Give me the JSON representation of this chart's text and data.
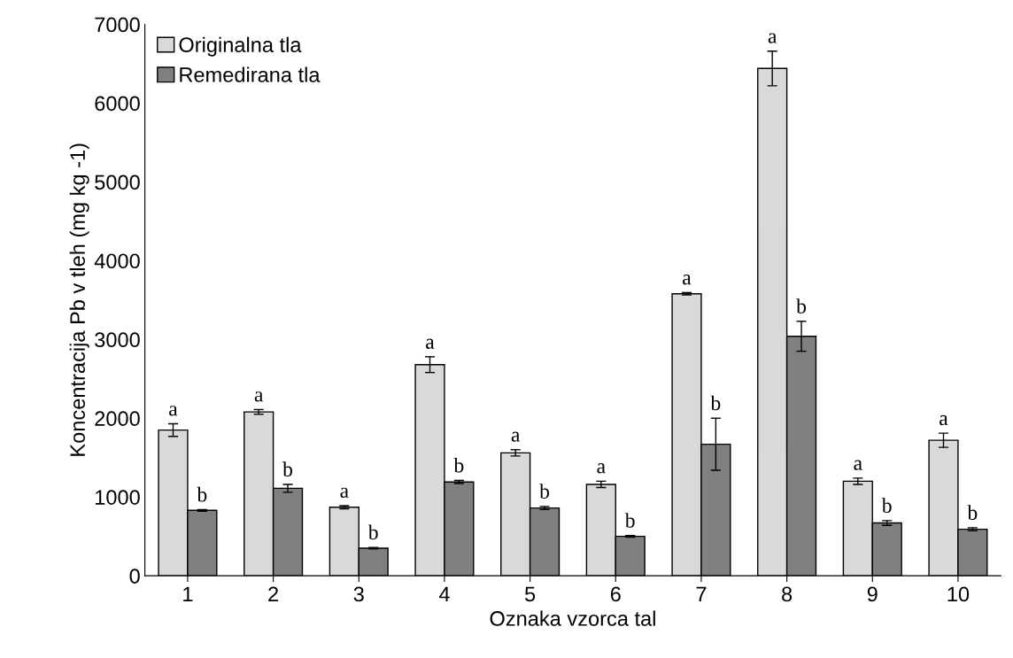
{
  "chart_data": {
    "type": "bar",
    "xlabel": "Oznaka vzorca tal",
    "ylabel": "Koncentracija Pb v tleh (mg kg -1)",
    "categories": [
      "1",
      "2",
      "3",
      "4",
      "5",
      "6",
      "7",
      "8",
      "9",
      "10"
    ],
    "series": [
      {
        "name": "Originalna tla",
        "color": "#d9d9d9",
        "values": [
          1850,
          2080,
          870,
          2680,
          1560,
          1160,
          3580,
          6440,
          1200,
          1720
        ],
        "errors": [
          80,
          30,
          20,
          100,
          40,
          40,
          15,
          220,
          40,
          90
        ]
      },
      {
        "name": "Remedirana tla",
        "color": "#808080",
        "values": [
          830,
          1110,
          350,
          1190,
          860,
          500,
          1670,
          3040,
          670,
          590
        ],
        "errors": [
          10,
          50,
          10,
          20,
          20,
          10,
          330,
          190,
          30,
          20
        ]
      }
    ],
    "ylim": [
      0,
      7000
    ],
    "yticks": [
      0,
      1000,
      2000,
      3000,
      4000,
      5000,
      6000,
      7000
    ],
    "grid": false,
    "legend": "top left",
    "annotations": [
      {
        "text": "a",
        "x": "1",
        "y": 1850
      },
      {
        "text": "b",
        "x": "1",
        "y": 830
      },
      {
        "text": "a",
        "x": "2",
        "y": 2080
      },
      {
        "text": "b",
        "x": "2",
        "y": 1110
      },
      {
        "text": "a",
        "x": "3",
        "y": 870
      },
      {
        "text": "b",
        "x": "3",
        "y": 350
      },
      {
        "text": "a",
        "x": "4",
        "y": 2680
      },
      {
        "text": "b",
        "x": "4",
        "y": 1190
      },
      {
        "text": "a",
        "x": "5",
        "y": 1560
      },
      {
        "text": "b",
        "x": "5",
        "y": 860
      },
      {
        "text": "a",
        "x": "6",
        "y": 1160
      },
      {
        "text": "b",
        "x": "6",
        "y": 500
      },
      {
        "text": "a",
        "x": "7",
        "y": 3580
      },
      {
        "text": "b",
        "x": "7",
        "y": 1670
      },
      {
        "text": "a",
        "x": "8",
        "y": 6440
      },
      {
        "text": "b",
        "x": "8",
        "y": 3040
      },
      {
        "text": "a",
        "x": "9",
        "y": 1200
      },
      {
        "text": "b",
        "x": "9",
        "y": 670
      },
      {
        "text": "a",
        "x": "10",
        "y": 1720
      },
      {
        "text": "b",
        "x": "10",
        "y": 590
      }
    ]
  }
}
